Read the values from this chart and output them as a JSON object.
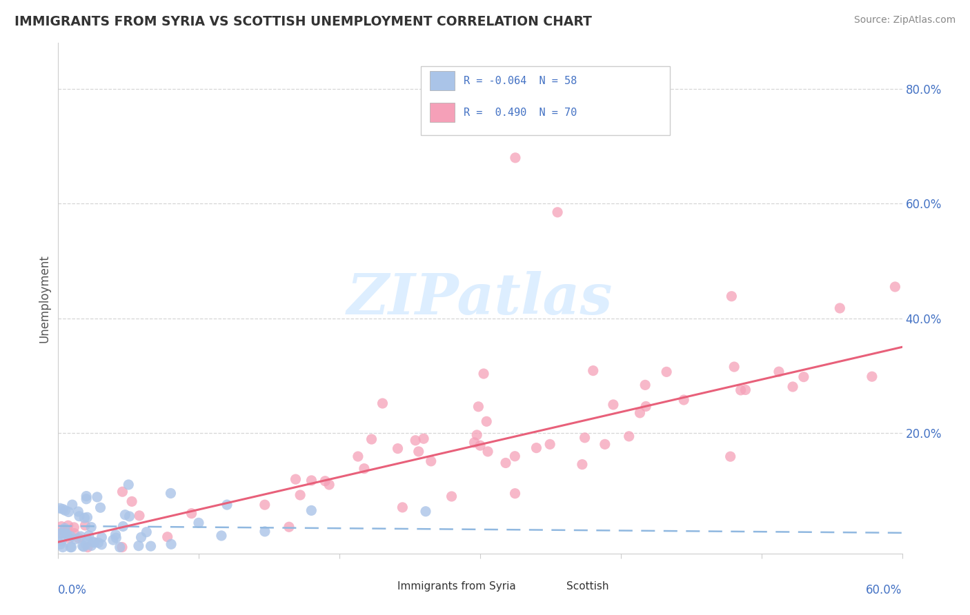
{
  "title": "IMMIGRANTS FROM SYRIA VS SCOTTISH UNEMPLOYMENT CORRELATION CHART",
  "source": "Source: ZipAtlas.com",
  "ylabel": "Unemployment",
  "y_ticks_labels": [
    "20.0%",
    "40.0%",
    "60.0%",
    "80.0%"
  ],
  "y_ticks_vals": [
    0.2,
    0.4,
    0.6,
    0.8
  ],
  "x_range": [
    0.0,
    0.6
  ],
  "y_range": [
    -0.01,
    0.88
  ],
  "color_blue": "#aac4e8",
  "color_pink": "#f5a0b8",
  "color_line_blue": "#90b8e0",
  "color_line_pink": "#e8607a",
  "watermark_color": "#ddeeff",
  "legend_items": [
    {
      "label": "R = -0.064  N = 58",
      "color": "#aac4e8"
    },
    {
      "label": "R =  0.490  N = 70",
      "color": "#f5a0b8"
    }
  ],
  "bottom_legend": [
    {
      "label": "Immigrants from Syria",
      "color": "#aac4e8"
    },
    {
      "label": "Scottish",
      "color": "#f5a0b8"
    }
  ],
  "blue_r": -0.064,
  "blue_n": 58,
  "pink_r": 0.49,
  "pink_n": 70,
  "blue_line_x0": 0.0,
  "blue_line_x1": 0.6,
  "blue_line_y0": 0.038,
  "blue_line_y1": 0.026,
  "pink_line_x0": 0.0,
  "pink_line_x1": 0.6,
  "pink_line_y0": 0.01,
  "pink_line_y1": 0.35
}
